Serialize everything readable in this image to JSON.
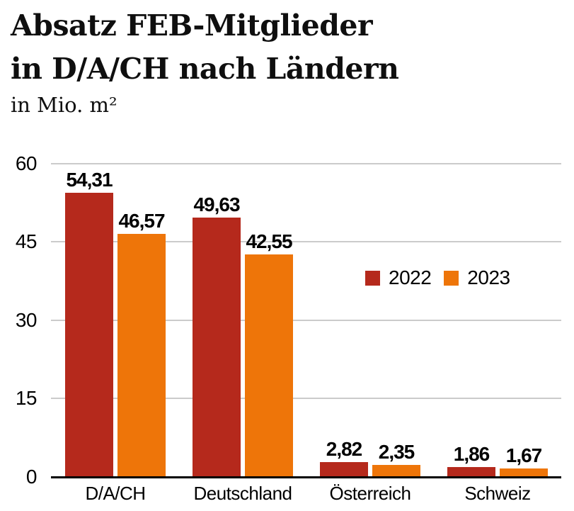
{
  "header": {
    "title_line1": "Absatz FEB-Mitglieder",
    "title_line2": "in D/A/CH nach Ländern",
    "subtitle": "in Mio. m²"
  },
  "chart_data": {
    "type": "bar",
    "title": "Absatz FEB-Mitglieder in D/A/CH nach Ländern",
    "subtitle": "in Mio. m²",
    "ylabel": "Mio. m²",
    "xlabel": "",
    "categories": [
      "D/A/CH",
      "Deutschland",
      "Österreich",
      "Schweiz"
    ],
    "series": [
      {
        "name": "2022",
        "color": "#b5291c",
        "values": [
          54.31,
          49.63,
          2.82,
          1.86
        ],
        "value_labels": [
          "54,31",
          "49,63",
          "2,82",
          "1,86"
        ]
      },
      {
        "name": "2023",
        "color": "#ee7509",
        "values": [
          46.57,
          42.55,
          2.35,
          1.67
        ],
        "value_labels": [
          "46,57",
          "42,55",
          "2,35",
          "1,67"
        ]
      }
    ],
    "y_axis": {
      "min": 0,
      "max": 60,
      "ticks": [
        0,
        15,
        30,
        45,
        60
      ]
    },
    "grid": true,
    "legend_position": "center-right",
    "colors": {
      "grid_line": "#cbcbcb",
      "axis_line": "#000000",
      "text": "#000000"
    }
  }
}
